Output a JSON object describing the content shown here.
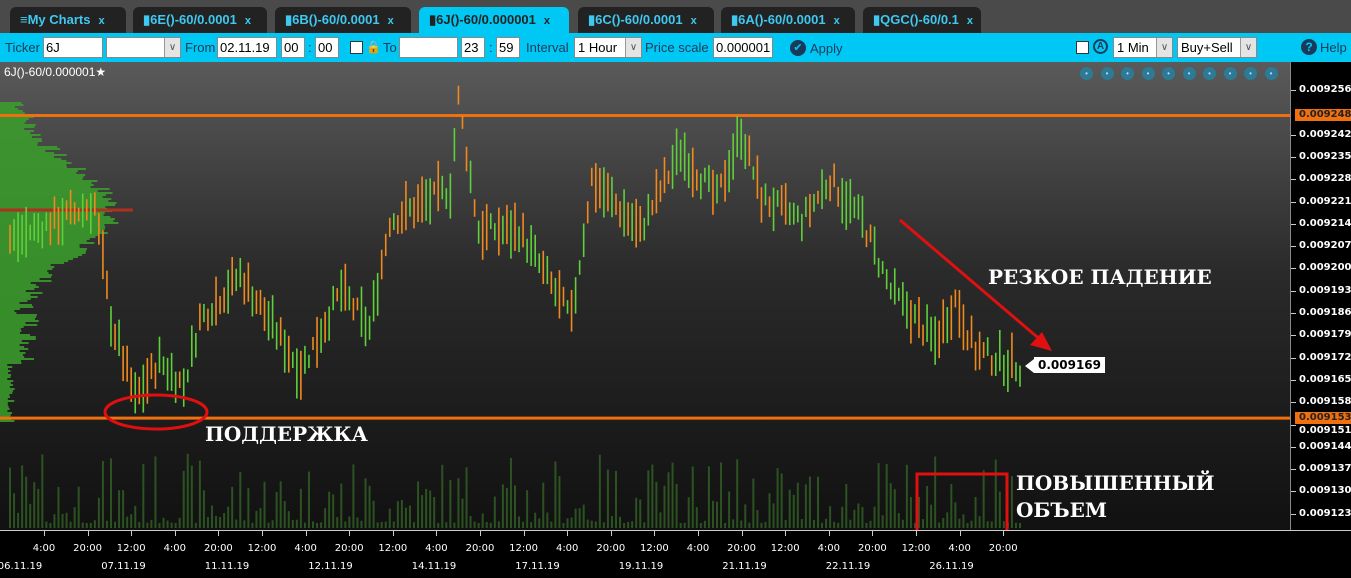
{
  "tabs": [
    {
      "label": "My Charts",
      "icon": "menu-icon",
      "active": false
    },
    {
      "label": "6E()-60/0.0001",
      "icon": "bar-chart-icon",
      "active": false
    },
    {
      "label": "6B()-60/0.0001",
      "icon": "bar-chart-icon",
      "active": false
    },
    {
      "label": "6J()-60/0.000001",
      "icon": "bar-chart-icon",
      "active": true
    },
    {
      "label": "6C()-60/0.0001",
      "icon": "bar-chart-icon",
      "active": false
    },
    {
      "label": "6A()-60/0.0001",
      "icon": "bar-chart-icon",
      "active": false
    },
    {
      "label": "QGC()-60/0.1",
      "icon": "bar-chart-icon",
      "active": false
    }
  ],
  "tab_close": "x",
  "toolbar": {
    "ticker_label": "Ticker",
    "ticker_value": "6J",
    "from_label": "From",
    "from_date": "02.11.19",
    "from_hour": "00",
    "from_min": "00",
    "to_label": "To",
    "to_date": "",
    "to_hour": "23",
    "to_min": "59",
    "time_sep": ":",
    "interval_label": "Interval",
    "interval_value": "1 Hour",
    "price_scale_label": "Price scale",
    "price_scale_value": "0.000001",
    "apply_label": "Apply",
    "tf_value": "1 Min",
    "side_value": "Buy+Sell",
    "help_label": "Help"
  },
  "chart": {
    "title": "6J()-60/0.000001",
    "level_high": "0.009248",
    "level_low": "0.009153",
    "last_price": "0.009169",
    "annotations": {
      "drop": "РЕЗКОЕ ПАДЕНИЕ",
      "support": "ПОДДЕРЖКА",
      "volume_line1": "ПОВЫШЕННЫЙ",
      "volume_line2": "ОБЪЕМ"
    },
    "colors": {
      "up": "#5fd03a",
      "down": "#f08a1e",
      "level": "#f07010",
      "annotation": "#e01010",
      "profile": "#3aa02a"
    }
  },
  "chart_data": {
    "type": "bar",
    "title": "6J()-60/0.000001",
    "y_ticks": [
      "0.009256",
      "0.009242",
      "0.009235",
      "0.009228",
      "0.009221",
      "0.009214",
      "0.009207",
      "0.009200",
      "0.009193",
      "0.009186",
      "0.009179",
      "0.009172",
      "0.009165",
      "0.009158",
      "0.009151",
      "0.009144",
      "0.009137",
      "0.009130",
      "0.009123"
    ],
    "ylim": [
      0.00912,
      0.009263
    ],
    "x_ticks": [
      "4:00",
      "20:00",
      "12:00",
      "4:00",
      "20:00",
      "12:00",
      "4:00",
      "20:00",
      "12:00",
      "4:00",
      "20:00",
      "12:00",
      "4:00",
      "20:00",
      "12:00",
      "4:00",
      "20:00",
      "12:00",
      "4:00",
      "20:00",
      "12:00",
      "4:00",
      "20:00"
    ],
    "date_labels": [
      "06.11.19",
      "07.11.19",
      "11.11.19",
      "12.11.19",
      "14.11.19",
      "17.11.19",
      "19.11.19",
      "21.11.19",
      "22.11.19",
      "26.11.19"
    ],
    "price_path": [
      {
        "bar": 0,
        "price": 0.009209
      },
      {
        "bar": 21,
        "price": 0.00922
      },
      {
        "bar": 25,
        "price": 0.009184
      },
      {
        "bar": 31,
        "price": 0.009159
      },
      {
        "bar": 37,
        "price": 0.009171
      },
      {
        "bar": 43,
        "price": 0.009163
      },
      {
        "bar": 47,
        "price": 0.009184
      },
      {
        "bar": 57,
        "price": 0.009198
      },
      {
        "bar": 72,
        "price": 0.009168
      },
      {
        "bar": 82,
        "price": 0.009193
      },
      {
        "bar": 89,
        "price": 0.009181
      },
      {
        "bar": 94,
        "price": 0.009215
      },
      {
        "bar": 109,
        "price": 0.009225
      },
      {
        "bar": 111,
        "price": 0.009253
      },
      {
        "bar": 116,
        "price": 0.009212
      },
      {
        "bar": 126,
        "price": 0.009212
      },
      {
        "bar": 139,
        "price": 0.009184
      },
      {
        "bar": 144,
        "price": 0.009228
      },
      {
        "bar": 156,
        "price": 0.009212
      },
      {
        "bar": 166,
        "price": 0.009237
      },
      {
        "bar": 175,
        "price": 0.009222
      },
      {
        "bar": 181,
        "price": 0.009243
      },
      {
        "bar": 186,
        "price": 0.009222
      },
      {
        "bar": 196,
        "price": 0.009215
      },
      {
        "bar": 203,
        "price": 0.009228
      },
      {
        "bar": 211,
        "price": 0.009215
      },
      {
        "bar": 218,
        "price": 0.009193
      },
      {
        "bar": 229,
        "price": 0.009177
      },
      {
        "bar": 234,
        "price": 0.00919
      },
      {
        "bar": 239,
        "price": 0.009174
      },
      {
        "bar": 250,
        "price": 0.009169
      }
    ],
    "levels": [
      0.009248,
      0.009153
    ],
    "last": 0.009169,
    "grid": false
  }
}
